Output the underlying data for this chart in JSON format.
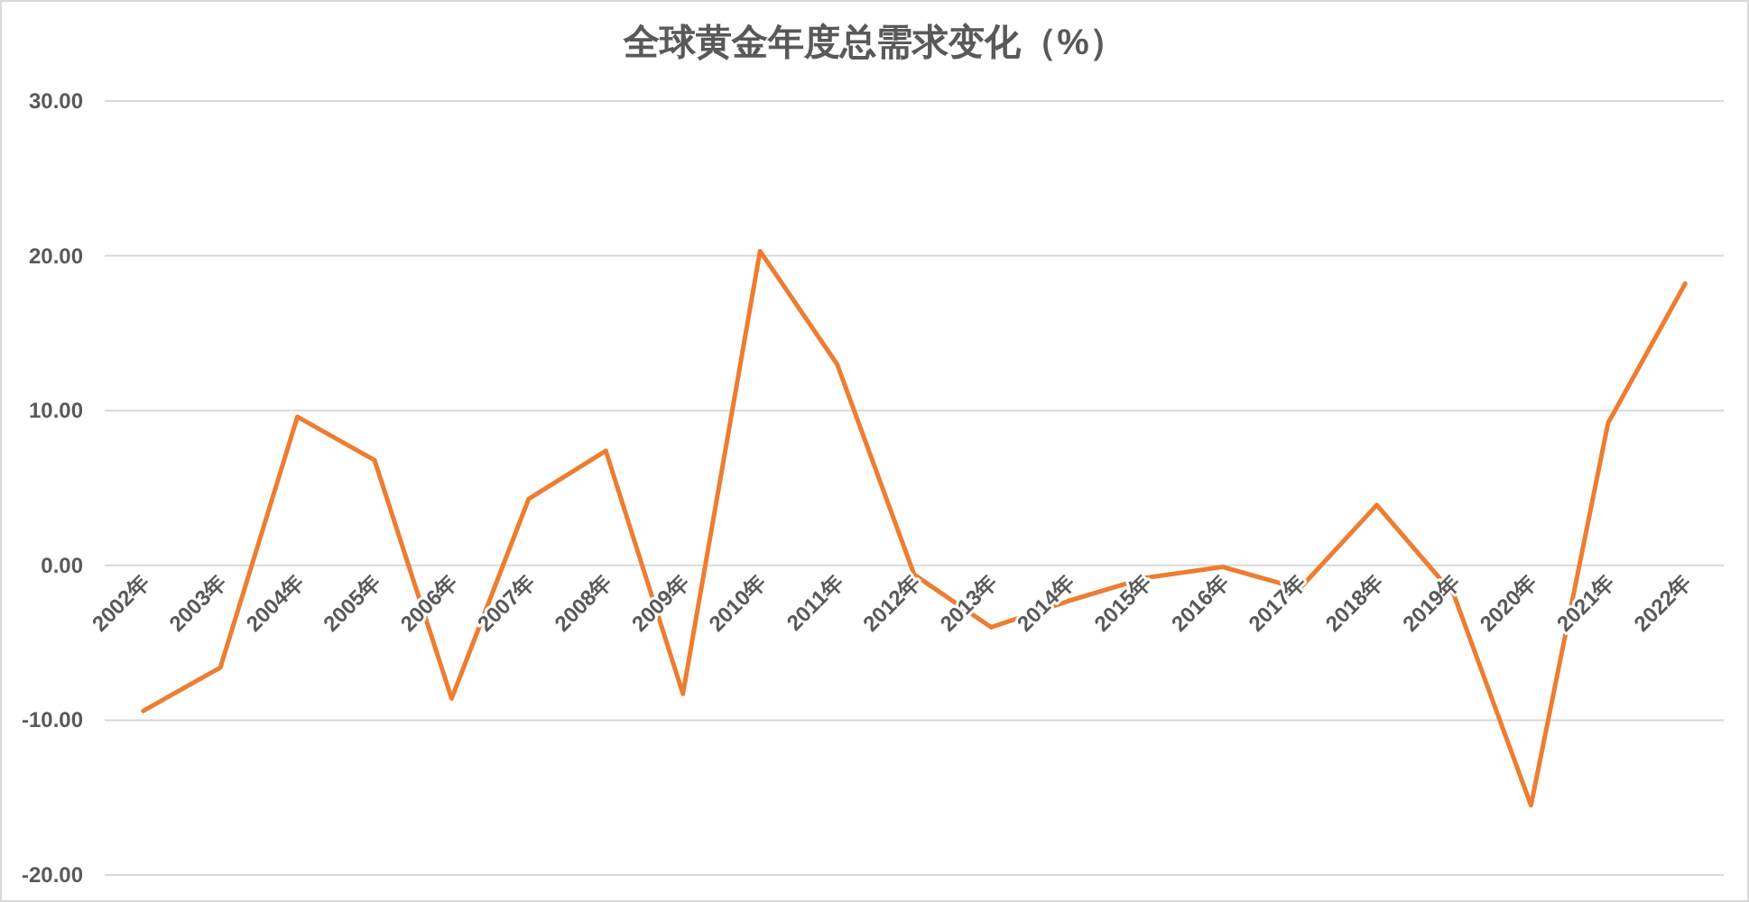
{
  "chart_data": {
    "type": "line",
    "title": "全球黄金年度总需求变化（%）",
    "categories": [
      "2002年",
      "2003年",
      "2004年",
      "2005年",
      "2006年",
      "2007年",
      "2008年",
      "2009年",
      "2010年",
      "2011年",
      "2012年",
      "2013年",
      "2014年",
      "2015年",
      "2016年",
      "2017年",
      "2018年",
      "2019年",
      "2020年",
      "2021年",
      "2022年"
    ],
    "series": [
      {
        "color": "#ed7d31",
        "values": [
          -9.4,
          -6.6,
          9.6,
          6.8,
          -8.6,
          4.3,
          7.4,
          -8.3,
          20.3,
          13.0,
          -0.6,
          -4.0,
          -2.3,
          -0.8,
          -0.1,
          -1.5,
          3.9,
          -1.9,
          -15.5,
          9.2,
          18.2
        ]
      }
    ],
    "ylim": [
      -20,
      30
    ],
    "yticks": [
      {
        "value": -20,
        "label": "-20.00"
      },
      {
        "value": -10,
        "label": "-10.00"
      },
      {
        "value": 0,
        "label": "0.00"
      },
      {
        "value": 10,
        "label": "10.00"
      },
      {
        "value": 20,
        "label": "20.00"
      },
      {
        "value": 30,
        "label": "30.00"
      }
    ],
    "grid": "y",
    "marker": "none",
    "line_style": "solid"
  }
}
